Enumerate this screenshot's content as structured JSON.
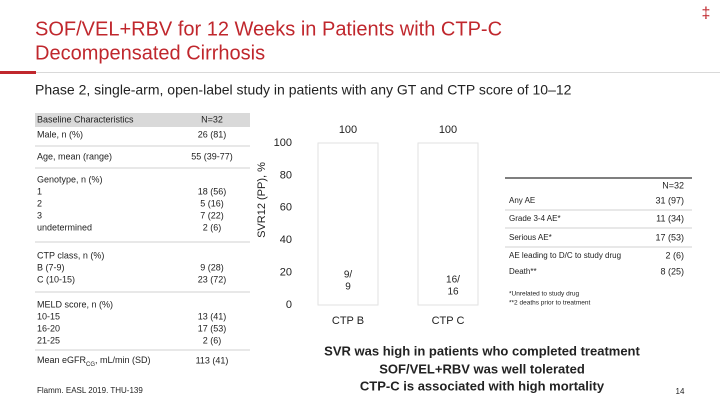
{
  "header": {
    "title_lines": [
      "SOF/VEL+RBV for 12 Weeks in Patients with CTP-C",
      "Decompensated Cirrhosis"
    ],
    "mark": "‡"
  },
  "subtitle": "Phase 2, single-arm, open-label study in patients with any GT and CTP score of 10–12",
  "baseline_table": {
    "headers": [
      "Baseline Characteristics",
      "N=32"
    ],
    "rows": [
      {
        "label": [
          "Male, n (%)"
        ],
        "value": [
          "26 (81)"
        ]
      },
      {
        "label": [
          "Age, mean (range)"
        ],
        "value": [
          "55 (39-77)"
        ]
      },
      {
        "label": [
          "Genotype, n (%)",
          "1",
          "2",
          "3",
          "undetermined"
        ],
        "value": [
          "18 (56)",
          "5 (16)",
          "7 (22)",
          "2 (6)"
        ]
      },
      {
        "label": [
          "CTP class, n (%)",
          "B (7-9)",
          "C (10-15)"
        ],
        "value": [
          "9 (28)",
          "23 (72)"
        ]
      },
      {
        "label": [
          "MELD score, n (%)",
          "10-15",
          "16-20",
          "21-25"
        ],
        "value": [
          "13 (41)",
          "17 (53)",
          "2 (6)"
        ]
      }
    ],
    "egfr_row": {
      "label": "Mean eGFR",
      "subscript": "CG",
      "label_rest": ", mL/min (SD)",
      "value": "113 (41)"
    }
  },
  "chart_data": {
    "type": "bar",
    "y_label": "SVR12 (PP), %",
    "categories": [
      "CTP B",
      "CTP C"
    ],
    "values": [
      100,
      100
    ],
    "bar_labels": [
      [
        "9/",
        "9"
      ],
      [
        "16/",
        "16"
      ]
    ],
    "color": "#ffffff",
    "ylim": [
      0,
      100
    ],
    "yticks": [
      0,
      20,
      40,
      60,
      80,
      100
    ],
    "grid": false
  },
  "ae_table": {
    "header": "N=32",
    "rows": [
      [
        "Any AE",
        "31 (97)"
      ],
      [
        "Grade 3-4 AE*",
        "11 (34)"
      ],
      [
        "Serious AE*",
        "17 (53)"
      ],
      [
        "AE leading to D/C to study drug",
        "2 (6)"
      ],
      [
        "Death**",
        "8 (25)"
      ]
    ],
    "footnotes": [
      "*Unrelated to study drug",
      "**2 deaths prior to treatment"
    ]
  },
  "conclusions": [
    "SVR was high in patients who completed treatment",
    "SOF/VEL+RBV was well tolerated",
    "CTP-C is associated with high mortality"
  ],
  "citation": "Flamm. EASL 2019. THU-139",
  "page_number": "14"
}
